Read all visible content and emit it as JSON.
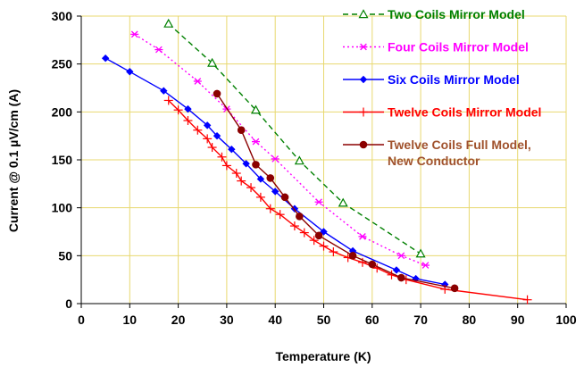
{
  "chart_data": {
    "type": "line",
    "xlabel": "Temperature (K)",
    "ylabel": "Current @ 0.1 µV/cm (A)",
    "xlim": [
      0,
      100
    ],
    "ylim": [
      0,
      300
    ],
    "x_ticks": [
      "0",
      "10",
      "20",
      "30",
      "40",
      "50",
      "60",
      "70",
      "80",
      "90",
      "100"
    ],
    "y_ticks": [
      "0",
      "50",
      "100",
      "150",
      "200",
      "250",
      "300"
    ],
    "grid": "vertical and horizontal gridlines",
    "legend_position": "top-right",
    "series": [
      {
        "name": "Two Coils Mirror Model",
        "color": "#008000",
        "line_style": "dashed",
        "marker": "open-triangle",
        "points": [
          [
            18,
            292
          ],
          [
            27,
            251
          ],
          [
            36,
            202
          ],
          [
            45,
            149
          ],
          [
            54,
            105
          ],
          [
            70,
            52
          ]
        ]
      },
      {
        "name": "Four Coils Mirror Model",
        "color": "#ff00ff",
        "line_style": "dotted",
        "marker": "asterisk",
        "points": [
          [
            11,
            281
          ],
          [
            16,
            265
          ],
          [
            24,
            232
          ],
          [
            30,
            203
          ],
          [
            36,
            169
          ],
          [
            40,
            151
          ],
          [
            49,
            106
          ],
          [
            58,
            70
          ],
          [
            66,
            50
          ],
          [
            71,
            40
          ]
        ]
      },
      {
        "name": "Six Coils Mirror Model",
        "color": "#0000ff",
        "line_style": "solid",
        "marker": "diamond",
        "points": [
          [
            5,
            256
          ],
          [
            10,
            242
          ],
          [
            17,
            222
          ],
          [
            22,
            203
          ],
          [
            26,
            186
          ],
          [
            28,
            175
          ],
          [
            31,
            161
          ],
          [
            34,
            146
          ],
          [
            37,
            130
          ],
          [
            40,
            117
          ],
          [
            44,
            99
          ],
          [
            50,
            75
          ],
          [
            56,
            55
          ],
          [
            65,
            35
          ],
          [
            69,
            26
          ],
          [
            75,
            20
          ]
        ]
      },
      {
        "name": "Twelve Coils Mirror Model",
        "color": "#ff0000",
        "line_style": "solid",
        "marker": "plus",
        "points": [
          [
            18,
            212
          ],
          [
            20,
            202
          ],
          [
            22,
            191
          ],
          [
            24,
            181
          ],
          [
            26,
            172
          ],
          [
            27,
            163
          ],
          [
            29,
            153
          ],
          [
            30,
            144
          ],
          [
            32,
            136
          ],
          [
            33,
            128
          ],
          [
            35,
            121
          ],
          [
            37,
            111
          ],
          [
            39,
            99
          ],
          [
            41,
            93
          ],
          [
            44,
            81
          ],
          [
            46,
            74
          ],
          [
            48,
            66
          ],
          [
            50,
            60
          ],
          [
            52,
            54
          ],
          [
            55,
            48
          ],
          [
            58,
            43
          ],
          [
            61,
            37
          ],
          [
            64,
            30
          ],
          [
            67,
            25
          ],
          [
            75,
            15
          ],
          [
            92,
            4
          ]
        ]
      },
      {
        "name": "Twelve Coils Full Model, New Conductor",
        "legend_lines": [
          "Twelve Coils Full Model,",
          "New Conductor"
        ],
        "color": "#8b0000",
        "text_color": "#a0522d",
        "line_style": "solid",
        "marker": "circle",
        "points": [
          [
            28,
            219
          ],
          [
            33,
            181
          ],
          [
            36,
            145
          ],
          [
            39,
            131
          ],
          [
            42,
            111
          ],
          [
            45,
            91
          ],
          [
            49,
            71
          ],
          [
            56,
            50
          ],
          [
            60,
            41
          ],
          [
            66,
            27
          ],
          [
            77,
            16
          ]
        ]
      }
    ]
  }
}
